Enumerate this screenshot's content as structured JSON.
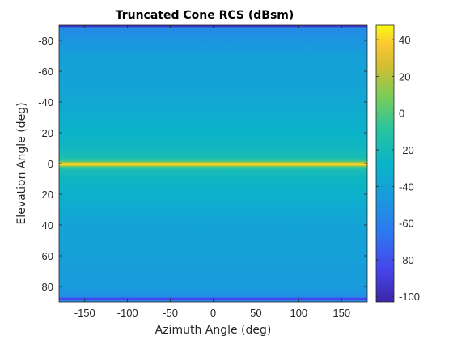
{
  "chart_data": {
    "type": "heatmap",
    "title": "Truncated Cone RCS (dBsm)",
    "xlabel": "Azimuth Angle (deg)",
    "ylabel": "Elevation Angle (deg)",
    "xlim": [
      -180,
      180
    ],
    "ylim": [
      -90,
      90
    ],
    "y_direction": "reverse",
    "x_ticks": [
      -150,
      -100,
      -50,
      0,
      50,
      100,
      150
    ],
    "y_ticks": [
      -80,
      -60,
      -40,
      -20,
      0,
      20,
      40,
      60,
      80
    ],
    "colorbar": {
      "colormap": "parula",
      "clim": [
        -103,
        48
      ],
      "ticks": [
        40,
        20,
        0,
        -20,
        -40,
        -60,
        -80,
        -100
      ]
    },
    "elevation_profile": [
      {
        "el": -90,
        "rcs": -95
      },
      {
        "el": -89,
        "rcs": -95
      },
      {
        "el": -88.5,
        "rcs": -55
      },
      {
        "el": -70,
        "rcs": -42
      },
      {
        "el": -50,
        "rcs": -40
      },
      {
        "el": -35,
        "rcs": -35
      },
      {
        "el": -20,
        "rcs": -28
      },
      {
        "el": -10,
        "rcs": -24
      },
      {
        "el": -3,
        "rcs": -16
      },
      {
        "el": -1.2,
        "rcs": 0
      },
      {
        "el": -0.5,
        "rcs": 30
      },
      {
        "el": 0.5,
        "rcs": 46
      },
      {
        "el": 1.2,
        "rcs": 30
      },
      {
        "el": 2,
        "rcs": 0
      },
      {
        "el": 4,
        "rcs": -18
      },
      {
        "el": 10,
        "rcs": -25
      },
      {
        "el": 20,
        "rcs": -30
      },
      {
        "el": 40,
        "rcs": -40
      },
      {
        "el": 60,
        "rcs": -42
      },
      {
        "el": 80,
        "rcs": -45
      },
      {
        "el": 86,
        "rcs": -52
      },
      {
        "el": 87,
        "rcs": -58
      },
      {
        "el": 87.5,
        "rcs": -85
      },
      {
        "el": 88.5,
        "rcs": -85
      },
      {
        "el": 89,
        "rcs": -55
      },
      {
        "el": 90,
        "rcs": -55
      }
    ]
  }
}
